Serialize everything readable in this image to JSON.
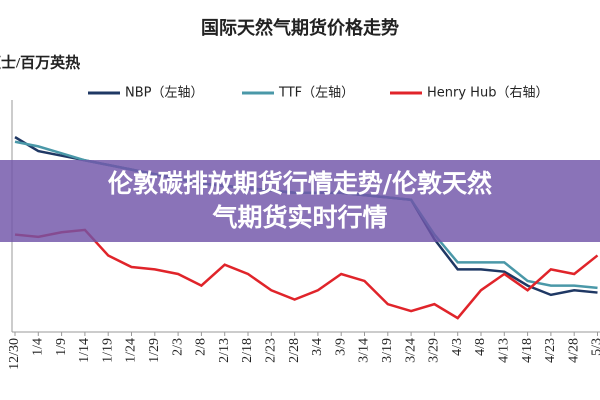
{
  "chart_data": {
    "type": "line",
    "title": "国际天然气期货价格走势",
    "y_label": "便士/百万英热",
    "categories": [
      "12/30",
      "1/4",
      "1/9",
      "1/14",
      "1/19",
      "1/24",
      "1/29",
      "2/3",
      "2/8",
      "2/13",
      "2/18",
      "2/23",
      "2/28",
      "3/4",
      "3/9",
      "3/14",
      "3/19",
      "3/24",
      "3/29",
      "4/3",
      "4/8",
      "4/13",
      "4/18",
      "4/23",
      "4/28",
      "5/3"
    ],
    "ylim": [
      0,
      100
    ],
    "series": [
      {
        "name": "NBP（左轴）",
        "color": "#1f3864",
        "values": [
          84,
          78,
          76,
          74,
          72,
          70,
          68,
          66,
          64,
          63,
          62,
          61,
          60,
          60,
          60,
          59,
          58,
          57,
          40,
          27,
          27,
          26,
          20,
          16,
          18,
          17
        ]
      },
      {
        "name": "TTF（左轴）",
        "color": "#4a98a8",
        "values": [
          82,
          80,
          77,
          74,
          72,
          70,
          68,
          66,
          64,
          63,
          62,
          61,
          60,
          60,
          60,
          59,
          58,
          57,
          42,
          30,
          30,
          30,
          22,
          20,
          20,
          19
        ]
      },
      {
        "name": "Henry Hub（右轴）",
        "color": "#e0242a",
        "axis": "y2",
        "values": [
          42,
          41,
          43,
          44,
          33,
          28,
          27,
          25,
          20,
          29,
          25,
          18,
          14,
          18,
          25,
          22,
          12,
          9,
          12,
          6,
          18,
          25,
          18,
          27,
          25,
          33
        ]
      }
    ],
    "y2lim": [
      0,
      100
    ]
  },
  "overlay_title": "伦敦碳排放期货行情走势/伦敦天然气期货实时行情"
}
